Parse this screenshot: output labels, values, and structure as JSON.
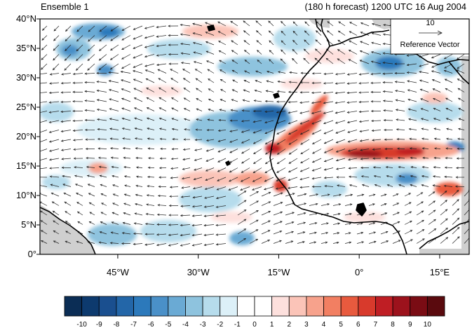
{
  "title_left": "Ensemble 1",
  "title_right": "(180 h forecast) 1200 UTC 16 Aug 2004",
  "reference_vector": {
    "value": "10",
    "label": "Reference Vector"
  },
  "map_extent": {
    "lon_min": -59.5,
    "lon_max": 20.5,
    "lat_min": 0,
    "lat_max": 40
  },
  "lat_labels": [
    "0°",
    "5°N",
    "10°N",
    "15°N",
    "20°N",
    "25°N",
    "30°N",
    "35°N",
    "40°N"
  ],
  "lat_values": [
    0,
    5,
    10,
    15,
    20,
    25,
    30,
    35,
    40
  ],
  "lon_labels": [
    "45°W",
    "30°W",
    "15°W",
    "0°",
    "15°E"
  ],
  "lon_values": [
    -45,
    -30,
    -15,
    0,
    15
  ],
  "colorbar": {
    "labels": [
      "-10",
      "-9",
      "-8",
      "-7",
      "-6",
      "-5",
      "-4",
      "-3",
      "-2",
      "-1",
      "0",
      "1",
      "2",
      "3",
      "4",
      "5",
      "6",
      "7",
      "8",
      "9",
      "10"
    ],
    "colors": [
      "#0b2d55",
      "#0d3a6e",
      "#1a4f8f",
      "#2366a8",
      "#2c79bb",
      "#4a90c8",
      "#6aaad4",
      "#8ec3de",
      "#b6dcec",
      "#dcf0f8",
      "#ffffff",
      "#ffffff",
      "#fde0dd",
      "#fbc4b8",
      "#f7a28c",
      "#f27f62",
      "#e85a3e",
      "#d83a2c",
      "#bf1e24",
      "#9c121c",
      "#7a0c14",
      "#5a0a0e"
    ]
  },
  "colors": {
    "land": "#cfcfcf",
    "coast": "#000000",
    "arrow": "#222222"
  }
}
